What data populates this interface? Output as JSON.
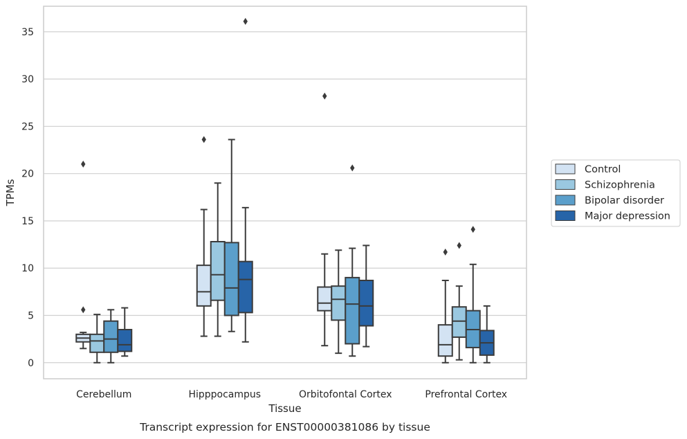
{
  "chart_data": {
    "type": "box",
    "caption": "Transcript expression for ENST00000381086 by tissue",
    "xlabel": "Tissue",
    "ylabel": "TPMs",
    "ylim": [
      -1.7,
      37.7
    ],
    "yticks": [
      0,
      5,
      10,
      15,
      20,
      25,
      30,
      35
    ],
    "grid": "horizontal",
    "legend_position": "right",
    "categories": [
      "Cerebellum",
      "Hipppocampus",
      "Orbitofontal Cortex",
      "Prefrontal Cortex"
    ],
    "series": [
      {
        "name": "Control",
        "color": "#d3e3f3",
        "boxes": [
          {
            "whislo": 1.5,
            "q1": 2.2,
            "med": 2.6,
            "q3": 3.0,
            "whishi": 3.2,
            "fliers": [
              5.6,
              21.0
            ]
          },
          {
            "whislo": 2.8,
            "q1": 6.0,
            "med": 7.5,
            "q3": 10.3,
            "whishi": 16.2,
            "fliers": [
              23.6
            ]
          },
          {
            "whislo": 1.8,
            "q1": 5.5,
            "med": 6.3,
            "q3": 8.0,
            "whishi": 11.5,
            "fliers": [
              28.2
            ]
          },
          {
            "whislo": 0.0,
            "q1": 0.7,
            "med": 1.9,
            "q3": 4.0,
            "whishi": 8.7,
            "fliers": [
              11.7
            ]
          }
        ]
      },
      {
        "name": "Schizophrenia",
        "color": "#9ac8e0",
        "boxes": [
          {
            "whislo": 0.0,
            "q1": 1.1,
            "med": 2.3,
            "q3": 3.0,
            "whishi": 5.1,
            "fliers": []
          },
          {
            "whislo": 2.8,
            "q1": 6.6,
            "med": 9.3,
            "q3": 12.8,
            "whishi": 19.0,
            "fliers": []
          },
          {
            "whislo": 1.0,
            "q1": 4.5,
            "med": 6.7,
            "q3": 8.1,
            "whishi": 11.9,
            "fliers": []
          },
          {
            "whislo": 0.3,
            "q1": 2.7,
            "med": 4.4,
            "q3": 5.9,
            "whishi": 8.1,
            "fliers": [
              12.4
            ]
          }
        ]
      },
      {
        "name": "Bipolar disorder",
        "color": "#5b9fcb",
        "boxes": [
          {
            "whislo": 0.0,
            "q1": 1.1,
            "med": 2.5,
            "q3": 4.4,
            "whishi": 5.6,
            "fliers": []
          },
          {
            "whislo": 3.3,
            "q1": 5.0,
            "med": 7.9,
            "q3": 12.7,
            "whishi": 23.6,
            "fliers": []
          },
          {
            "whislo": 0.7,
            "q1": 2.0,
            "med": 6.2,
            "q3": 9.0,
            "whishi": 12.1,
            "fliers": [
              20.6
            ]
          },
          {
            "whislo": 0.0,
            "q1": 1.6,
            "med": 3.5,
            "q3": 5.5,
            "whishi": 10.4,
            "fliers": [
              14.1
            ]
          }
        ]
      },
      {
        "name": "Major depression",
        "color": "#2764a8",
        "boxes": [
          {
            "whislo": 0.7,
            "q1": 1.2,
            "med": 1.9,
            "q3": 3.5,
            "whishi": 5.8,
            "fliers": []
          },
          {
            "whislo": 2.2,
            "q1": 5.3,
            "med": 8.8,
            "q3": 10.7,
            "whishi": 16.4,
            "fliers": [
              36.1
            ]
          },
          {
            "whislo": 1.7,
            "q1": 3.9,
            "med": 6.0,
            "q3": 8.7,
            "whishi": 12.4,
            "fliers": []
          },
          {
            "whislo": 0.0,
            "q1": 0.8,
            "med": 2.1,
            "q3": 3.4,
            "whishi": 6.0,
            "fliers": []
          }
        ]
      }
    ]
  }
}
